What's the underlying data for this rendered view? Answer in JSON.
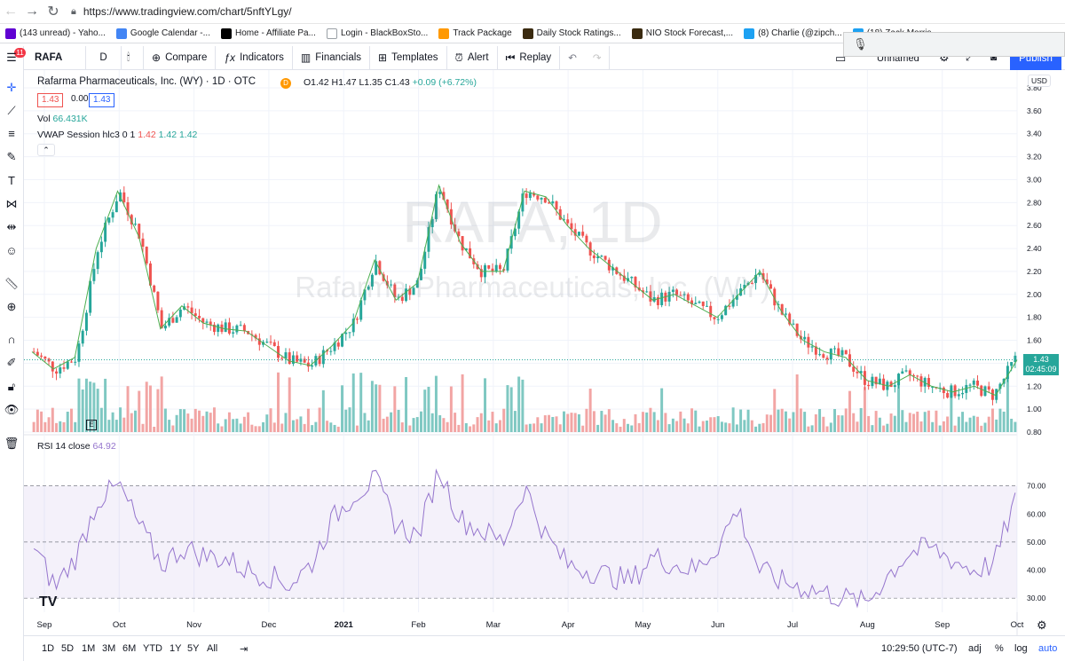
{
  "browser": {
    "url": "https://www.tradingview.com/chart/5nftYLgy/",
    "bookmarks": [
      {
        "label": "(143 unread) - Yaho...",
        "color": "#6001d2"
      },
      {
        "label": "Google Calendar -...",
        "color": "#4285f4"
      },
      {
        "label": "Home - Affiliate Pa...",
        "color": "#000000"
      },
      {
        "label": "Login - BlackBoxSto...",
        "color": "#9aa0a6"
      },
      {
        "label": "Track Package",
        "color": "#ff9900"
      },
      {
        "label": "Daily Stock Ratings...",
        "color": "#3a2a10"
      },
      {
        "label": "NIO Stock Forecast,...",
        "color": "#3a2a10"
      },
      {
        "label": "(8) Charlie (@zipch...",
        "color": "#1da1f2"
      },
      {
        "label": "(18) Zack Morris",
        "color": "#1da1f2"
      }
    ]
  },
  "toolbar": {
    "symbol": "RAFA",
    "interval": "D",
    "compare": "Compare",
    "indicators": "Indicators",
    "financials": "Financials",
    "templates": "Templates",
    "alert": "Alert",
    "replay": "Replay",
    "layout_name": "Unnamed",
    "publish": "Publish"
  },
  "sidebar": {
    "badge": "11"
  },
  "legend": {
    "title": "Rafarma Pharmaceuticals, Inc. (WY) · 1D · OTC",
    "delay_badge": "D",
    "ohlc": "O1.42 H1.47 L1.35 C1.43",
    "change": "+0.09 (+6.72%)",
    "bid": "1.43",
    "spread": "0.00",
    "ask": "1.43",
    "vol_label": "Vol",
    "vol_value": "66.431K",
    "vwap_label": "VWAP Session hlc3 0 1",
    "vwap_values": [
      "1.42",
      "1.42",
      "1.42"
    ]
  },
  "watermark": {
    "symbol": "RAFA, 1D",
    "name": "Rafarma Pharmaceuticals, Inc. (WY)"
  },
  "rsi": {
    "label": "RSI 14 close",
    "value": "64.92"
  },
  "price_axis": {
    "currency": "USD",
    "ticks": [
      "3.80",
      "3.60",
      "3.40",
      "3.20",
      "3.00",
      "2.80",
      "2.60",
      "2.40",
      "2.20",
      "2.00",
      "1.80",
      "1.60",
      "1.40",
      "1.20",
      "1.00",
      "0.80"
    ],
    "last_price": "1.43",
    "countdown": "02:45:09"
  },
  "rsi_axis": {
    "ticks": [
      "70.00",
      "60.00",
      "50.00",
      "40.00",
      "30.00"
    ]
  },
  "time_axis": {
    "labels": [
      "Sep",
      "Oct",
      "Nov",
      "Dec",
      "2021",
      "Feb",
      "Mar",
      "Apr",
      "May",
      "Jun",
      "Jul",
      "Aug",
      "Sep",
      "Oct"
    ]
  },
  "bottom": {
    "ranges": [
      "1D",
      "5D",
      "1M",
      "3M",
      "6M",
      "YTD",
      "1Y",
      "5Y",
      "All"
    ],
    "clock": "10:29:50 (UTC-7)",
    "percent": "%",
    "log": "log",
    "auto": "auto",
    "adj": "adj"
  },
  "colors": {
    "up": "#26a69a",
    "down": "#ef5350",
    "vol_up": "#7fc8c2",
    "vol_down": "#f2a5a4",
    "vwap": "#4caf50",
    "rsi": "#9575cd",
    "accent": "#2962ff"
  },
  "chart_data": {
    "type": "candlestick",
    "symbol": "RAFA",
    "interval": "1D",
    "ylim": [
      0.8,
      3.8
    ],
    "x": [
      "Sep",
      "Oct",
      "Nov",
      "Dec",
      "2021",
      "Feb",
      "Mar",
      "Apr",
      "May",
      "Jun",
      "Jul",
      "Aug",
      "Sep"
    ],
    "close_path": [
      1.5,
      1.35,
      1.45,
      2.4,
      2.9,
      2.5,
      1.7,
      1.9,
      1.75,
      1.7,
      1.68,
      1.55,
      1.42,
      1.38,
      1.55,
      1.75,
      2.3,
      1.95,
      2.1,
      2.95,
      2.45,
      2.2,
      2.2,
      2.9,
      2.85,
      2.6,
      2.4,
      2.25,
      2.1,
      1.95,
      2.0,
      1.9,
      1.8,
      2.0,
      2.2,
      1.85,
      1.6,
      1.5,
      1.45,
      1.25,
      1.2,
      1.3,
      1.2,
      1.15,
      1.2,
      1.12,
      1.43
    ],
    "rsi_ylim": [
      25,
      80
    ],
    "rsi_levels": [
      70,
      50,
      30
    ],
    "rsi_path": [
      48,
      34,
      45,
      65,
      70,
      55,
      42,
      48,
      45,
      44,
      40,
      38,
      35,
      42,
      58,
      67,
      72,
      56,
      52,
      76,
      58,
      54,
      50,
      70,
      52,
      42,
      40,
      38,
      36,
      45,
      42,
      40,
      48,
      62,
      40,
      36,
      34,
      32,
      30,
      28,
      38,
      46,
      48,
      44,
      40,
      42,
      65
    ]
  }
}
